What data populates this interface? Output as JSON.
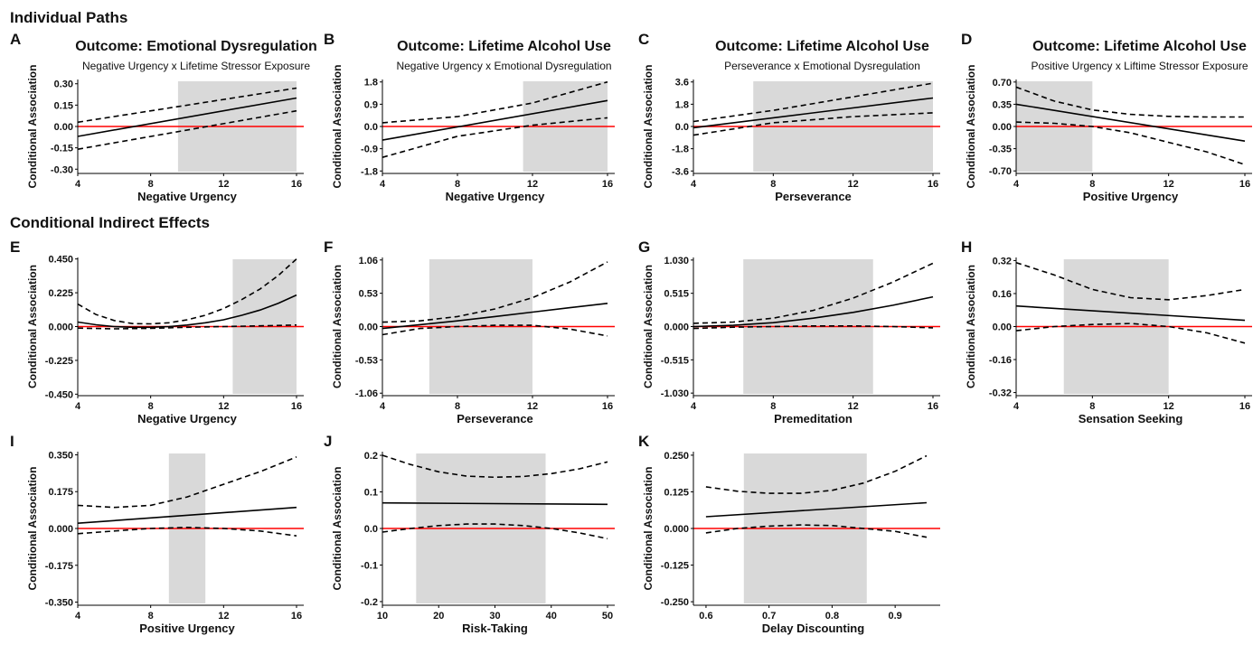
{
  "sections": {
    "individual_paths": "Individual Paths",
    "conditional_indirect_effects": "Conditional Indirect Effects"
  },
  "colors": {
    "zero_line": "#ff0000",
    "region_shade": "#d9d9d9",
    "line": "#000000"
  },
  "chart_data": [
    {
      "id": "A",
      "type": "line",
      "section": "individual_paths",
      "title": "Outcome: Emotional Dysregulation",
      "subtitle": "Negative Urgency x Lifetime Stressor Exposure",
      "xlabel": "Negative Urgency",
      "ylabel": "Conditional Association",
      "xlim": [
        4,
        16
      ],
      "ylim": [
        -0.33,
        0.33
      ],
      "xticks": [
        4,
        8,
        12,
        16
      ],
      "xticklabels": [
        "4",
        "8",
        "12",
        "16"
      ],
      "yticks": [
        0.3,
        0.15,
        0.0,
        -0.15,
        -0.3
      ],
      "yticklabels": [
        "0.30",
        "0.15",
        "0.00",
        "-0.15",
        "-0.30"
      ],
      "shade": [
        9.5,
        16
      ],
      "series": [
        {
          "style": "solid",
          "x": [
            4,
            16
          ],
          "y": [
            -0.07,
            0.2
          ]
        },
        {
          "style": "dashed",
          "x": [
            4,
            16
          ],
          "y": [
            0.03,
            0.27
          ]
        },
        {
          "style": "dashed",
          "x": [
            4,
            16
          ],
          "y": [
            -0.16,
            0.11
          ]
        }
      ]
    },
    {
      "id": "B",
      "type": "line",
      "section": "individual_paths",
      "title": "Outcome: Lifetime Alcohol Use",
      "subtitle": "Negative Urgency x Emotional Dysregulation",
      "xlabel": "Negative Urgency",
      "ylabel": "Conditional Association",
      "xlim": [
        4,
        16
      ],
      "ylim": [
        -1.9,
        1.9
      ],
      "xticks": [
        4,
        8,
        12,
        16
      ],
      "xticklabels": [
        "4",
        "8",
        "12",
        "16"
      ],
      "yticks": [
        1.8,
        0.9,
        0.0,
        -0.9,
        -1.8
      ],
      "yticklabels": [
        "1.8",
        "0.9",
        "0.0",
        "-0.9",
        "-1.8"
      ],
      "shade": [
        11.5,
        16
      ],
      "series": [
        {
          "style": "solid",
          "x": [
            4,
            16
          ],
          "y": [
            -0.55,
            1.05
          ]
        },
        {
          "style": "dashed",
          "x": [
            4,
            8,
            12,
            16
          ],
          "y": [
            0.15,
            0.4,
            0.95,
            1.8
          ]
        },
        {
          "style": "dashed",
          "x": [
            4,
            8,
            12,
            16
          ],
          "y": [
            -1.25,
            -0.4,
            0.05,
            0.35
          ]
        }
      ]
    },
    {
      "id": "C",
      "type": "line",
      "section": "individual_paths",
      "title": "Outcome: Lifetime Alcohol Use",
      "subtitle": "Perseverance x Emotional Dysregulation",
      "xlabel": "Perseverance",
      "ylabel": "Conditional Association",
      "xlim": [
        4,
        16
      ],
      "ylim": [
        -3.8,
        3.8
      ],
      "xticks": [
        4,
        8,
        12,
        16
      ],
      "xticklabels": [
        "4",
        "8",
        "12",
        "16"
      ],
      "yticks": [
        3.6,
        1.8,
        0.0,
        -1.8,
        -3.6
      ],
      "yticklabels": [
        "3.6",
        "1.8",
        "0.0",
        "-1.8",
        "-3.6"
      ],
      "shade": [
        7,
        16
      ],
      "series": [
        {
          "style": "solid",
          "x": [
            4,
            16
          ],
          "y": [
            -0.1,
            2.3
          ]
        },
        {
          "style": "dashed",
          "x": [
            4,
            8,
            12,
            16
          ],
          "y": [
            0.4,
            1.3,
            2.4,
            3.5
          ]
        },
        {
          "style": "dashed",
          "x": [
            4,
            8,
            12,
            16
          ],
          "y": [
            -0.7,
            0.3,
            0.8,
            1.1
          ]
        }
      ]
    },
    {
      "id": "D",
      "type": "line",
      "section": "individual_paths",
      "title": "Outcome: Lifetime Alcohol Use",
      "subtitle": "Positive Urgency x Liftime Stressor Exposure",
      "xlabel": "Positive Urgency",
      "ylabel": "Conditional Association",
      "xlim": [
        4,
        16
      ],
      "ylim": [
        -0.74,
        0.74
      ],
      "xticks": [
        4,
        8,
        12,
        16
      ],
      "xticklabels": [
        "4",
        "8",
        "12",
        "16"
      ],
      "yticks": [
        0.7,
        0.35,
        0.0,
        -0.35,
        -0.7
      ],
      "yticklabels": [
        "0.70",
        "0.35",
        "0.00",
        "-0.35",
        "-0.70"
      ],
      "shade": [
        4,
        8
      ],
      "series": [
        {
          "style": "solid",
          "x": [
            4,
            16
          ],
          "y": [
            0.35,
            -0.23
          ]
        },
        {
          "style": "dashed",
          "x": [
            4,
            6,
            8,
            10,
            12,
            14,
            16
          ],
          "y": [
            0.62,
            0.4,
            0.26,
            0.19,
            0.16,
            0.15,
            0.15
          ]
        },
        {
          "style": "dashed",
          "x": [
            4,
            6,
            8,
            10,
            12,
            14,
            16
          ],
          "y": [
            0.07,
            0.05,
            0.0,
            -0.1,
            -0.25,
            -0.4,
            -0.6
          ]
        }
      ]
    },
    {
      "id": "E",
      "type": "line",
      "section": "conditional_indirect_effects",
      "title": "",
      "subtitle": "",
      "xlabel": "Negative Urgency",
      "ylabel": "Conditional Association",
      "xlim": [
        4,
        16
      ],
      "ylim": [
        -0.46,
        0.46
      ],
      "xticks": [
        4,
        8,
        12,
        16
      ],
      "xticklabels": [
        "4",
        "8",
        "12",
        "16"
      ],
      "yticks": [
        0.45,
        0.225,
        0.0,
        -0.225,
        -0.45
      ],
      "yticklabels": [
        "0.450",
        "0.225",
        "0.000",
        "-0.225",
        "-0.450"
      ],
      "shade": [
        12.5,
        16
      ],
      "series": [
        {
          "style": "solid",
          "x": [
            4,
            5,
            6,
            7,
            8,
            9,
            10,
            11,
            12,
            13,
            14,
            15,
            16
          ],
          "y": [
            0.03,
            0.012,
            0.0,
            -0.005,
            -0.005,
            0.0,
            0.01,
            0.025,
            0.045,
            0.075,
            0.11,
            0.155,
            0.21
          ]
        },
        {
          "style": "dashed",
          "x": [
            4,
            5,
            6,
            7,
            8,
            9,
            10,
            11,
            12,
            13,
            14,
            15,
            16
          ],
          "y": [
            0.15,
            0.08,
            0.04,
            0.02,
            0.018,
            0.025,
            0.045,
            0.075,
            0.12,
            0.18,
            0.25,
            0.34,
            0.45
          ]
        },
        {
          "style": "dashed",
          "x": [
            4,
            6,
            8,
            10,
            12,
            14,
            16
          ],
          "y": [
            -0.01,
            -0.015,
            -0.012,
            -0.005,
            0.0,
            0.005,
            0.01
          ]
        }
      ]
    },
    {
      "id": "F",
      "type": "line",
      "section": "conditional_indirect_effects",
      "title": "",
      "subtitle": "",
      "xlabel": "Perseverance",
      "ylabel": "Conditional Association",
      "xlim": [
        4,
        16
      ],
      "ylim": [
        -1.1,
        1.1
      ],
      "xticks": [
        4,
        8,
        12,
        16
      ],
      "xticklabels": [
        "4",
        "8",
        "12",
        "16"
      ],
      "yticks": [
        1.06,
        0.53,
        0.0,
        -0.53,
        -1.06
      ],
      "yticklabels": [
        "1.06",
        "0.53",
        "0.00",
        "-0.53",
        "-1.06"
      ],
      "shade": [
        6.5,
        12
      ],
      "series": [
        {
          "style": "solid",
          "x": [
            4,
            6,
            8,
            10,
            12,
            14,
            16
          ],
          "y": [
            -0.03,
            0.03,
            0.09,
            0.16,
            0.23,
            0.3,
            0.37
          ]
        },
        {
          "style": "dashed",
          "x": [
            4,
            6,
            8,
            10,
            12,
            14,
            16
          ],
          "y": [
            0.07,
            0.09,
            0.16,
            0.28,
            0.46,
            0.71,
            1.03
          ]
        },
        {
          "style": "dashed",
          "x": [
            4,
            6,
            8,
            10,
            12,
            14,
            16
          ],
          "y": [
            -0.13,
            -0.03,
            0.0,
            0.02,
            0.02,
            -0.04,
            -0.15
          ]
        }
      ]
    },
    {
      "id": "G",
      "type": "line",
      "section": "conditional_indirect_effects",
      "title": "",
      "subtitle": "",
      "xlabel": "Premeditation",
      "ylabel": "Conditional Association",
      "xlim": [
        4,
        16
      ],
      "ylim": [
        -1.07,
        1.07
      ],
      "xticks": [
        4,
        8,
        12,
        16
      ],
      "xticklabels": [
        "4",
        "8",
        "12",
        "16"
      ],
      "yticks": [
        1.03,
        0.515,
        0.0,
        -0.515,
        -1.03
      ],
      "yticklabels": [
        "1.030",
        "0.515",
        "0.000",
        "-0.515",
        "-1.030"
      ],
      "shade": [
        6.5,
        13
      ],
      "series": [
        {
          "style": "solid",
          "x": [
            4,
            6,
            8,
            10,
            12,
            14,
            16
          ],
          "y": [
            0.0,
            0.02,
            0.06,
            0.13,
            0.22,
            0.33,
            0.46
          ]
        },
        {
          "style": "dashed",
          "x": [
            4,
            6,
            8,
            10,
            12,
            14,
            16
          ],
          "y": [
            0.05,
            0.07,
            0.13,
            0.25,
            0.44,
            0.69,
            0.98
          ]
        },
        {
          "style": "dashed",
          "x": [
            4,
            6,
            8,
            10,
            12,
            14,
            16
          ],
          "y": [
            -0.03,
            -0.01,
            0.0,
            0.01,
            0.01,
            0.0,
            -0.02
          ]
        }
      ]
    },
    {
      "id": "H",
      "type": "line",
      "section": "conditional_indirect_effects",
      "title": "",
      "subtitle": "",
      "xlabel": "Sensation Seeking",
      "ylabel": "Conditional Association",
      "xlim": [
        4,
        16
      ],
      "ylim": [
        -0.335,
        0.335
      ],
      "xticks": [
        4,
        8,
        12,
        16
      ],
      "xticklabels": [
        "4",
        "8",
        "12",
        "16"
      ],
      "yticks": [
        0.32,
        0.16,
        0.0,
        -0.16,
        -0.32
      ],
      "yticklabels": [
        "0.32",
        "0.16",
        "0.00",
        "-0.16",
        "-0.32"
      ],
      "shade": [
        6.5,
        12
      ],
      "series": [
        {
          "style": "solid",
          "x": [
            4,
            16
          ],
          "y": [
            0.1,
            0.03
          ]
        },
        {
          "style": "dashed",
          "x": [
            4,
            6,
            8,
            10,
            12,
            14,
            16
          ],
          "y": [
            0.31,
            0.25,
            0.18,
            0.14,
            0.13,
            0.15,
            0.18
          ]
        },
        {
          "style": "dashed",
          "x": [
            4,
            6,
            8,
            10,
            12,
            14,
            16
          ],
          "y": [
            -0.02,
            0.0,
            0.01,
            0.015,
            0.0,
            -0.03,
            -0.08
          ]
        }
      ]
    },
    {
      "id": "I",
      "type": "line",
      "section": "conditional_indirect_effects",
      "title": "",
      "subtitle": "",
      "xlabel": "Positive Urgency",
      "ylabel": "Conditional Association",
      "xlim": [
        4,
        16
      ],
      "ylim": [
        -0.365,
        0.365
      ],
      "xticks": [
        4,
        8,
        12,
        16
      ],
      "xticklabels": [
        "4",
        "8",
        "12",
        "16"
      ],
      "yticks": [
        0.35,
        0.175,
        0.0,
        -0.175,
        -0.35
      ],
      "yticklabels": [
        "0.350",
        "0.175",
        "0.000",
        "-0.175",
        "-0.350"
      ],
      "shade": [
        9,
        11
      ],
      "series": [
        {
          "style": "solid",
          "x": [
            4,
            16
          ],
          "y": [
            0.025,
            0.1
          ]
        },
        {
          "style": "dashed",
          "x": [
            4,
            6,
            8,
            10,
            12,
            14,
            16
          ],
          "y": [
            0.11,
            0.1,
            0.11,
            0.15,
            0.21,
            0.27,
            0.34
          ]
        },
        {
          "style": "dashed",
          "x": [
            4,
            6,
            8,
            10,
            12,
            14,
            16
          ],
          "y": [
            -0.025,
            -0.012,
            0.0,
            0.005,
            0.0,
            -0.012,
            -0.035
          ]
        }
      ]
    },
    {
      "id": "J",
      "type": "line",
      "section": "conditional_indirect_effects",
      "title": "",
      "subtitle": "",
      "xlabel": "Risk-Taking",
      "ylabel": "Conditional Association",
      "xlim": [
        10,
        50
      ],
      "ylim": [
        -0.21,
        0.21
      ],
      "xticks": [
        10,
        20,
        30,
        40,
        50
      ],
      "xticklabels": [
        "10",
        "20",
        "30",
        "40",
        "50"
      ],
      "yticks": [
        0.2,
        0.1,
        0.0,
        -0.1,
        -0.2
      ],
      "yticklabels": [
        "0.2",
        "0.1",
        "0.0",
        "-0.1",
        "-0.2"
      ],
      "shade": [
        16,
        39
      ],
      "series": [
        {
          "style": "solid",
          "x": [
            10,
            50
          ],
          "y": [
            0.07,
            0.066
          ]
        },
        {
          "style": "dashed",
          "x": [
            10,
            15,
            20,
            25,
            30,
            35,
            40,
            45,
            50
          ],
          "y": [
            0.2,
            0.175,
            0.155,
            0.143,
            0.14,
            0.142,
            0.15,
            0.163,
            0.182
          ]
        },
        {
          "style": "dashed",
          "x": [
            10,
            15,
            20,
            25,
            30,
            35,
            40,
            45,
            50
          ],
          "y": [
            -0.01,
            0.0,
            0.008,
            0.012,
            0.012,
            0.008,
            0.0,
            -0.012,
            -0.028
          ]
        }
      ]
    },
    {
      "id": "K",
      "type": "line",
      "section": "conditional_indirect_effects",
      "title": "",
      "subtitle": "",
      "xlabel": "Delay Discounting",
      "ylabel": "Conditional Association",
      "xlim": [
        0.58,
        0.96
      ],
      "ylim": [
        -0.262,
        0.262
      ],
      "xticks": [
        0.6,
        0.7,
        0.8,
        0.9
      ],
      "xticklabels": [
        "0.6",
        "0.7",
        "0.8",
        "0.9"
      ],
      "yticks": [
        0.25,
        0.125,
        0.0,
        -0.125,
        -0.25
      ],
      "yticklabels": [
        "0.250",
        "0.125",
        "0.000",
        "-0.125",
        "-0.250"
      ],
      "shade": [
        0.66,
        0.855
      ],
      "series": [
        {
          "style": "solid",
          "x": [
            0.6,
            0.95
          ],
          "y": [
            0.04,
            0.088
          ]
        },
        {
          "style": "dashed",
          "x": [
            0.6,
            0.65,
            0.7,
            0.75,
            0.8,
            0.85,
            0.9,
            0.95
          ],
          "y": [
            0.142,
            0.127,
            0.12,
            0.12,
            0.13,
            0.155,
            0.195,
            0.248
          ]
        },
        {
          "style": "dashed",
          "x": [
            0.6,
            0.65,
            0.7,
            0.75,
            0.8,
            0.85,
            0.9,
            0.95
          ],
          "y": [
            -0.015,
            0.0,
            0.008,
            0.012,
            0.01,
            0.0,
            -0.01,
            -0.03
          ]
        }
      ]
    }
  ]
}
